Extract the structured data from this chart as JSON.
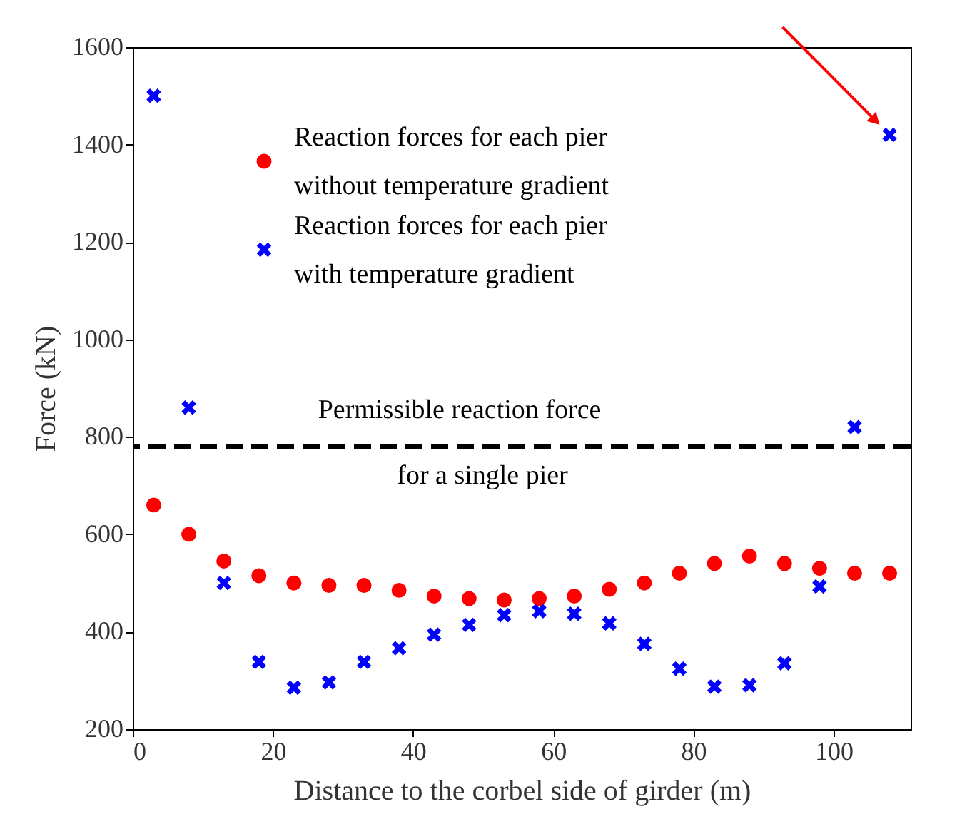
{
  "chart_data": {
    "type": "scatter",
    "xlabel": "Distance to the corbel side of girder (m)",
    "ylabel": "Force (kN)",
    "x": [
      3,
      8,
      13,
      18,
      23,
      28,
      33,
      38,
      43,
      48,
      53,
      58,
      63,
      68,
      73,
      78,
      83,
      88,
      93,
      98,
      103,
      108
    ],
    "series": [
      {
        "name": "Reaction forces for each pier without temperature gradient",
        "color": "#ff0000",
        "marker": "circle",
        "values": [
          660,
          600,
          545,
          515,
          500,
          495,
          495,
          485,
          473,
          468,
          465,
          468,
          473,
          487,
          500,
          520,
          540,
          555,
          540,
          530,
          520,
          520
        ]
      },
      {
        "name": "Reaction forces for each pier with temperature gradient",
        "color": "#0000ff",
        "marker": "cross",
        "values": [
          1500,
          860,
          500,
          338,
          285,
          296,
          338,
          366,
          394,
          414,
          434,
          442,
          437,
          417,
          375,
          324,
          287,
          290,
          335,
          493,
          820,
          1420
        ]
      }
    ],
    "xlim": [
      0,
      111
    ],
    "xticks": [
      0,
      20,
      40,
      60,
      80,
      100
    ],
    "ylim": [
      200,
      1600
    ],
    "yticks": [
      200,
      400,
      600,
      800,
      1000,
      1200,
      1400,
      1600
    ],
    "ref_lines": [
      {
        "axis": "y",
        "value": 780,
        "color": "#000000",
        "line_style": "dashed"
      }
    ],
    "annotations": [
      "Permissible reaction force",
      "for a single pier"
    ],
    "grid": false,
    "legend": "top"
  }
}
